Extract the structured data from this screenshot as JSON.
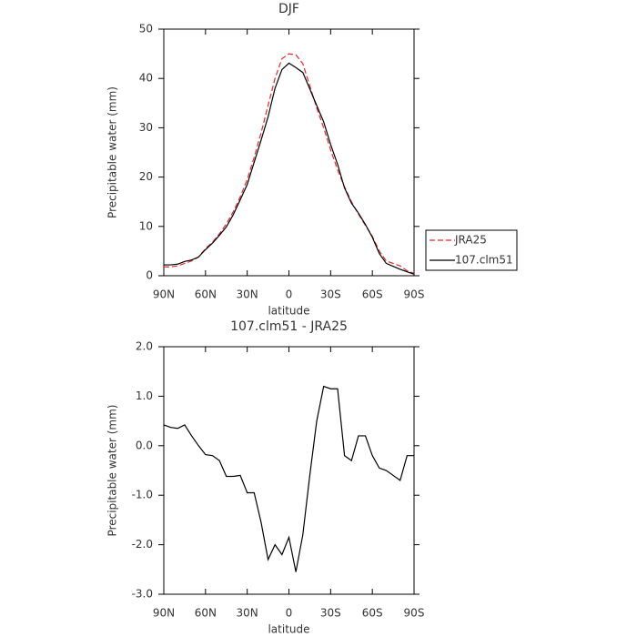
{
  "chart_data": [
    {
      "type": "line",
      "title": "DJF",
      "x_label": "latitude",
      "y_label": "Precipitable water (mm)",
      "x": [
        90,
        85,
        80,
        75,
        70,
        65,
        60,
        55,
        50,
        45,
        40,
        35,
        30,
        25,
        20,
        15,
        10,
        5,
        0,
        -5,
        -10,
        -15,
        -20,
        -25,
        -30,
        -35,
        -40,
        -45,
        -50,
        -55,
        -60,
        -65,
        -70,
        -75,
        -80,
        -85,
        -90
      ],
      "series": [
        {
          "name": "JRA25",
          "color": "#e8262c",
          "line_style": "dashed",
          "values": [
            1.8,
            1.8,
            2,
            2.5,
            3,
            3.8,
            5.5,
            6.8,
            8.5,
            10.5,
            13,
            16,
            19.5,
            24,
            29,
            34.5,
            40,
            44,
            45,
            44.8,
            43,
            38.5,
            34,
            30,
            25.5,
            21.5,
            18,
            15,
            12.5,
            10.2,
            8,
            5,
            3,
            2.5,
            2,
            1,
            0.5
          ]
        },
        {
          "name": "107.clm51",
          "color": "#000000",
          "line_style": "solid",
          "values": [
            2.2,
            2.2,
            2.35,
            2.9,
            3.2,
            3.8,
            5.3,
            6.6,
            8.2,
            9.9,
            12.4,
            15.4,
            18.5,
            23,
            27.5,
            32.2,
            38,
            41.8,
            43.1,
            42.2,
            41.2,
            37.9,
            34.5,
            31.2,
            26.6,
            22.6,
            17.8,
            14.7,
            12.7,
            10.4,
            7.8,
            4.5,
            2.5,
            1.9,
            1.3,
            0.8,
            0.3
          ]
        }
      ],
      "xlim": [
        90,
        -90
      ],
      "xticks": [
        {
          "value": 90,
          "label": "90N"
        },
        {
          "value": 60,
          "label": "60N"
        },
        {
          "value": 30,
          "label": "30N"
        },
        0,
        {
          "value": -30,
          "label": "30S"
        },
        {
          "value": -60,
          "label": "60S"
        },
        {
          "value": -90,
          "label": "90S"
        }
      ],
      "ylim": [
        0,
        50
      ],
      "yticks": [
        0,
        10,
        20,
        30,
        40,
        50
      ],
      "legend": "right"
    },
    {
      "type": "line",
      "title": "107.clm51 - JRA25",
      "x_label": "latitude",
      "y_label": "Precipitable water (mm)",
      "x": [
        90,
        85,
        80,
        75,
        70,
        65,
        60,
        55,
        50,
        45,
        40,
        35,
        30,
        25,
        20,
        15,
        10,
        5,
        0,
        -5,
        -10,
        -15,
        -20,
        -25,
        -30,
        -35,
        -40,
        -45,
        -50,
        -55,
        -60,
        -65,
        -70,
        -75,
        -80,
        -85,
        -90
      ],
      "series": [
        {
          "name": "107.clm51 - JRA25",
          "color": "#000000",
          "line_style": "solid",
          "values": [
            0.42,
            0.37,
            0.35,
            0.42,
            0.2,
            0,
            -0.18,
            -0.2,
            -0.3,
            -0.62,
            -0.62,
            -0.6,
            -0.95,
            -0.95,
            -1.55,
            -2.3,
            -2,
            -2.2,
            -1.85,
            -2.55,
            -1.8,
            -0.6,
            0.5,
            1.2,
            1.15,
            1.15,
            -0.2,
            -0.3,
            0.2,
            0.2,
            -0.2,
            -0.45,
            -0.5,
            -0.6,
            -0.7,
            -0.2,
            -0.2
          ]
        }
      ],
      "xlim": [
        90,
        -90
      ],
      "xticks": [
        {
          "value": 90,
          "label": "90N"
        },
        {
          "value": 60,
          "label": "60N"
        },
        {
          "value": 30,
          "label": "30N"
        },
        0,
        {
          "value": -30,
          "label": "30S"
        },
        {
          "value": -60,
          "label": "60S"
        },
        {
          "value": -90,
          "label": "90S"
        }
      ],
      "ylim": [
        -3,
        2
      ],
      "yticks": [
        {
          "value": -3,
          "label": "-3.0"
        },
        {
          "value": -2,
          "label": "-2.0"
        },
        {
          "value": -1,
          "label": "-1.0"
        },
        {
          "value": 0,
          "label": "0.0"
        },
        {
          "value": 1,
          "label": "1.0"
        },
        {
          "value": 2,
          "label": "2.0"
        }
      ]
    }
  ]
}
